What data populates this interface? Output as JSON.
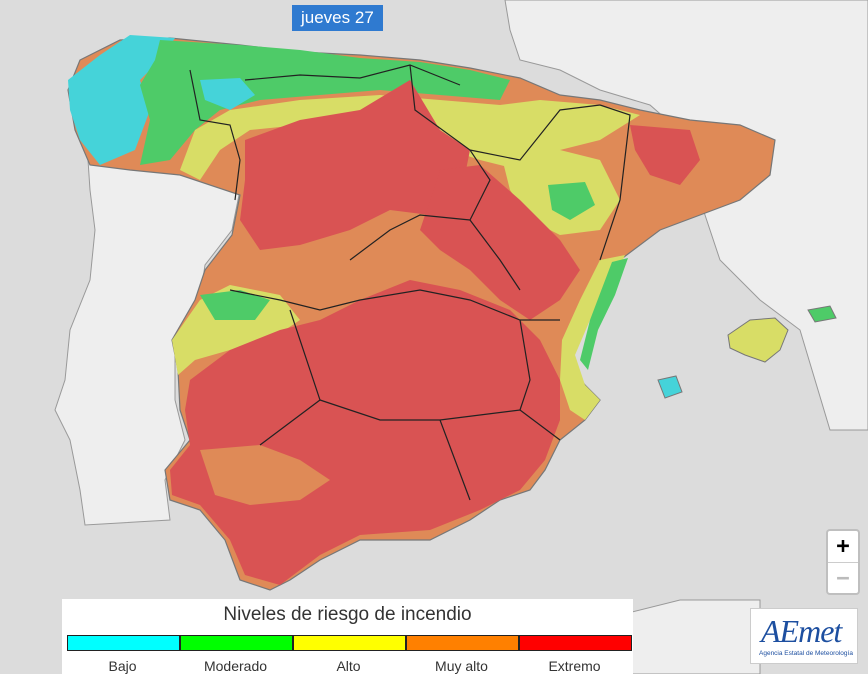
{
  "date_label": "jueves 27",
  "legend": {
    "title": "Niveles de riesgo de incendio",
    "levels": [
      {
        "label": "Bajo",
        "color": "#00ffff"
      },
      {
        "label": "Moderado",
        "color": "#00ff00"
      },
      {
        "label": "Alto",
        "color": "#ffff00"
      },
      {
        "label": "Muy alto",
        "color": "#ff8000"
      },
      {
        "label": "Extremo",
        "color": "#ff0000"
      }
    ]
  },
  "map_colors": {
    "sea": "#dcdcdc",
    "land_other": "#eeeeee",
    "coast_line": "#888888",
    "border_line": "#222222",
    "bajo": "#45d3d9",
    "moderado": "#4ecb68",
    "alto": "#d8dd66",
    "muy_alto": "#df8a57",
    "extremo": "#d95353"
  },
  "zoom": {
    "in_label": "+",
    "out_label": "−"
  },
  "logo": {
    "name": "AEmet",
    "subtitle": "Agencia Estatal de Meteorología"
  }
}
